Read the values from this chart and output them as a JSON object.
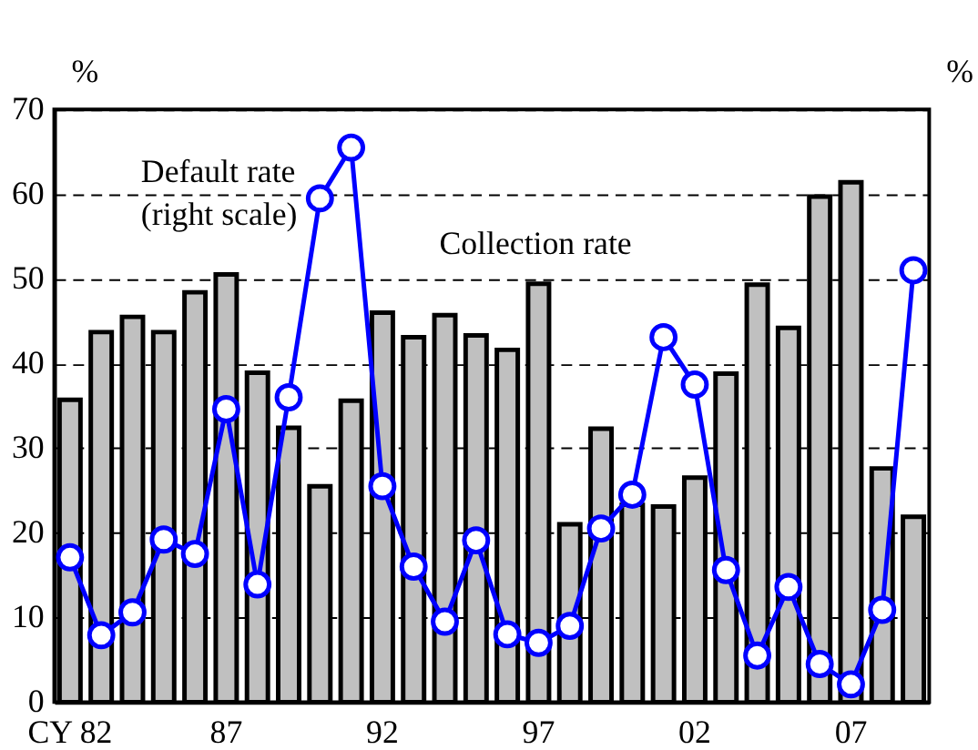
{
  "chart_data": {
    "type": "bar",
    "categories": [
      "CY 82",
      null,
      null,
      null,
      null,
      "87",
      null,
      null,
      null,
      null,
      "92",
      null,
      null,
      null,
      null,
      "97",
      null,
      null,
      null,
      null,
      "02",
      null,
      null,
      null,
      null,
      "07",
      null,
      null
    ],
    "series": [
      {
        "name": "Collection rate",
        "color": "#c0c0c0",
        "values": [
          35.7,
          43.7,
          45.5,
          43.7,
          48.4,
          50.5,
          38.9,
          32.4,
          25.5,
          35.6,
          46.0,
          43.1,
          45.7,
          43.3,
          41.6,
          49.4,
          21.0,
          32.3,
          23.3,
          23.1,
          26.5,
          38.8,
          49.3,
          44.2,
          59.7,
          61.4,
          27.6,
          21.9
        ]
      },
      {
        "name": "Default rate (right scale)",
        "type": "line",
        "color": "#0000ff",
        "marker": "circle",
        "values": [
          17.1,
          7.9,
          10.6,
          19.2,
          17.5,
          34.6,
          13.9,
          36.0,
          59.5,
          65.5,
          25.5,
          16.0,
          9.5,
          19.1,
          8.0,
          7.0,
          9.0,
          20.5,
          24.5,
          43.1,
          37.5,
          15.6,
          5.5,
          13.6,
          4.5,
          2.1,
          10.9,
          51.0
        ]
      }
    ],
    "ylim": [
      0,
      70
    ],
    "yticks": [
      0,
      10,
      20,
      30,
      40,
      50,
      60,
      70
    ],
    "grid": "y",
    "annotations": [
      "%",
      "%"
    ]
  }
}
